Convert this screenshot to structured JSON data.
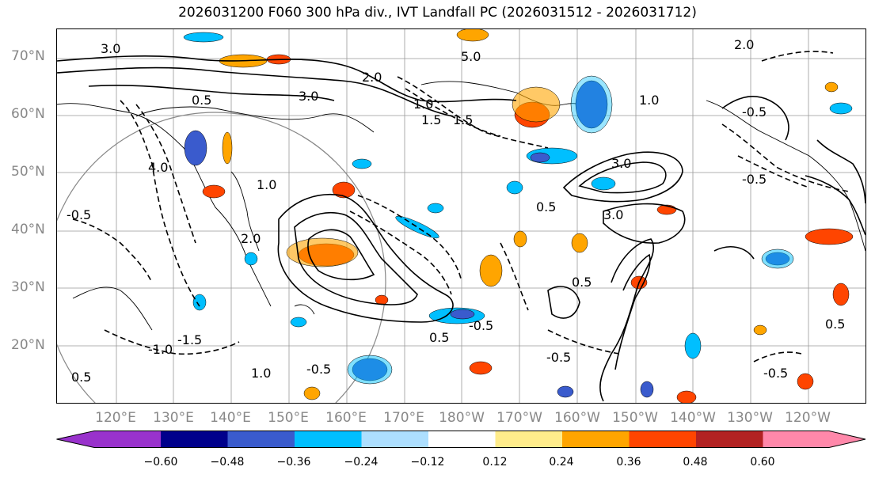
{
  "title": "2026031200 F060 300 hPa div., IVT Landfall PC (2026031512 - 2026031712)",
  "lat_labels": [
    "70°N",
    "60°N",
    "50°N",
    "40°N",
    "30°N",
    "20°N"
  ],
  "lon_labels": [
    "120°E",
    "130°E",
    "140°E",
    "150°E",
    "160°E",
    "170°E",
    "180°W",
    "170°W",
    "160°W",
    "150°W",
    "140°W",
    "130°W",
    "120°W"
  ],
  "colorbar": {
    "colors": [
      "#9932CC",
      "#00008B",
      "#3A5BCD",
      "#00BFFF",
      "#ADDFFF",
      "#FFFFFF",
      "#FFEC8B",
      "#FFA500",
      "#FF4500",
      "#B22222",
      "#FF88AA"
    ],
    "ticks": [
      "−0.60",
      "−0.48",
      "−0.36",
      "−0.24",
      "−0.12",
      "0.12",
      "0.24",
      "0.36",
      "0.48",
      "0.60"
    ]
  },
  "contour_labels": [
    {
      "text": "3.0"
    },
    {
      "text": "5.0"
    },
    {
      "text": "2.0"
    },
    {
      "text": "0.5"
    },
    {
      "text": "3.0"
    },
    {
      "text": "1.0"
    },
    {
      "text": "1.5"
    },
    {
      "text": "4.0"
    },
    {
      "text": "-0.5"
    },
    {
      "text": "2.0"
    },
    {
      "text": "1.0"
    },
    {
      "text": "3.0"
    },
    {
      "text": "0.5"
    },
    {
      "text": "-1.0"
    },
    {
      "text": "-1.5"
    },
    {
      "text": "0.5"
    },
    {
      "text": "-0.5"
    },
    {
      "text": "1.0"
    },
    {
      "text": "-0.5"
    },
    {
      "text": "0.5"
    },
    {
      "text": "-0.5"
    },
    {
      "text": "3.0"
    },
    {
      "text": "-0.5"
    },
    {
      "text": "1.0"
    },
    {
      "text": "0.5"
    },
    {
      "text": "-0.5"
    },
    {
      "text": "0.5"
    },
    {
      "text": "-0.5"
    },
    {
      "text": "2.0"
    },
    {
      "text": "1.5"
    }
  ]
}
